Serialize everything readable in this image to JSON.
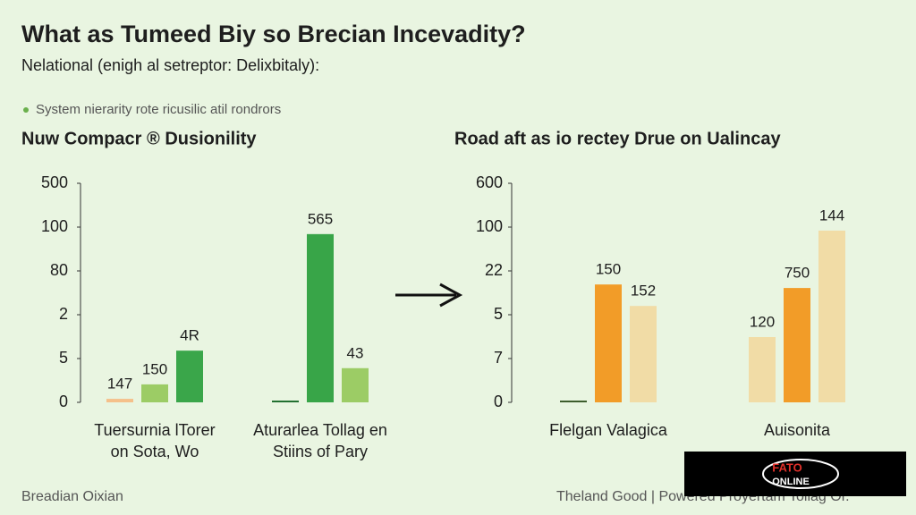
{
  "header": {
    "title": "What as Tumeed Biy so Brecian Incevadity?",
    "subtitle": "Nelational (enigh al setreptor: Delixbitaly):",
    "legend": "System nierarity rote ricusilic atil rondrors"
  },
  "footer": {
    "left": "Breadian Oixian",
    "right": "Theland Good | Powered Proyertam Tollag Or.",
    "logo": [
      "FATO",
      "ONLINE"
    ]
  },
  "chart_data": [
    {
      "type": "bar",
      "title": "Nuw Compacr ® Dusionility",
      "categories": [
        [
          "Tuersurnia lTorer",
          "on Sota, Wo"
        ],
        [
          "Aturarlea Tollag en",
          "Stiins of Pary"
        ]
      ],
      "series": [
        {
          "colors": [
            "#f5c08a",
            "#1f6e2e"
          ],
          "values": [
            0.08,
            0.04
          ],
          "bar_texts": [
            "147",
            null
          ]
        },
        {
          "colors": [
            "#9ccc65",
            "#38a548"
          ],
          "values": [
            0.41,
            3.84
          ],
          "bar_texts": [
            "150",
            "565"
          ]
        },
        {
          "colors": [
            "#3aa64a",
            "#9ccc65"
          ],
          "values": [
            1.18,
            0.78
          ],
          "bar_texts": [
            "4R",
            "43"
          ]
        }
      ],
      "ylim": [
        0,
        5
      ],
      "yticks": [
        0,
        {
          "value": 1,
          "label": "5"
        },
        {
          "value": 2,
          "label": "2"
        },
        {
          "value": 3,
          "label": "80"
        },
        {
          "value": 4,
          "label": "100"
        },
        {
          "value": 5,
          "label": "500"
        }
      ]
    },
    {
      "type": "bar",
      "title": "Road aft as io rectey Drue on Ualincay",
      "categories": [
        [
          "Flelgan Valagica"
        ],
        [
          "Auisonita"
        ]
      ],
      "series": [
        {
          "colors": [
            "#3a5a2a",
            "#f1dca6"
          ],
          "values": [
            0.04,
            1.49
          ],
          "bar_texts": [
            null,
            "120"
          ]
        },
        {
          "colors": [
            "#f29c28",
            "#f29c28"
          ],
          "values": [
            2.69,
            2.61
          ],
          "bar_texts": [
            "150",
            "750"
          ]
        },
        {
          "colors": [
            "#f1dca6",
            "#f1dca6"
          ],
          "values": [
            2.2,
            3.92
          ],
          "bar_texts": [
            "152",
            "144"
          ]
        }
      ],
      "ylim": [
        0,
        5
      ],
      "yticks": [
        0,
        {
          "value": 1,
          "label": "7"
        },
        {
          "value": 2,
          "label": "5"
        },
        {
          "value": 3,
          "label": "22"
        },
        {
          "value": 4,
          "label": "100"
        },
        {
          "value": 5,
          "label": "600"
        }
      ]
    }
  ]
}
